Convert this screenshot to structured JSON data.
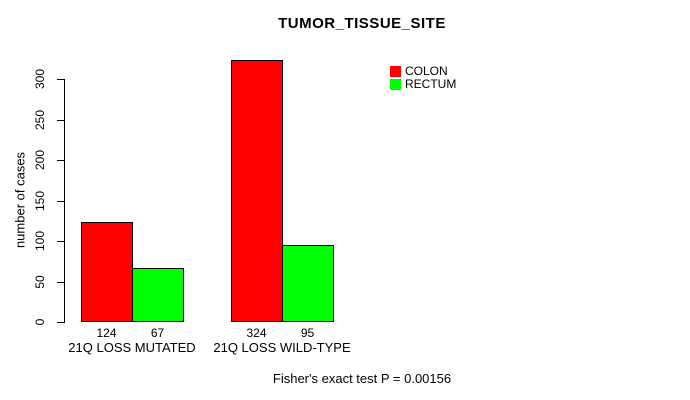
{
  "chart_data": {
    "type": "bar",
    "title": "TUMOR_TISSUE_SITE",
    "xlabel": "",
    "ylabel": "number of cases",
    "ylim": [
      0,
      300
    ],
    "yticks": [
      0,
      50,
      100,
      150,
      200,
      250,
      300
    ],
    "grid": false,
    "legend_position": "top-right",
    "categories": [
      "21Q LOSS MUTATED",
      "21Q LOSS WILD-TYPE"
    ],
    "series": [
      {
        "name": "COLON",
        "color": "#ff0000",
        "values": [
          124,
          324
        ]
      },
      {
        "name": "RECTUM",
        "color": "#00ff00",
        "values": [
          67,
          95
        ]
      }
    ],
    "bar_value_labels": [
      [
        "124",
        "67"
      ],
      [
        "324",
        "95"
      ]
    ],
    "annotation": "Fisher's exact test P = 0.00156",
    "colors": {
      "background": "#ffffff",
      "axis": "#000000",
      "bar_border": "#000000",
      "text": "#000000"
    }
  }
}
